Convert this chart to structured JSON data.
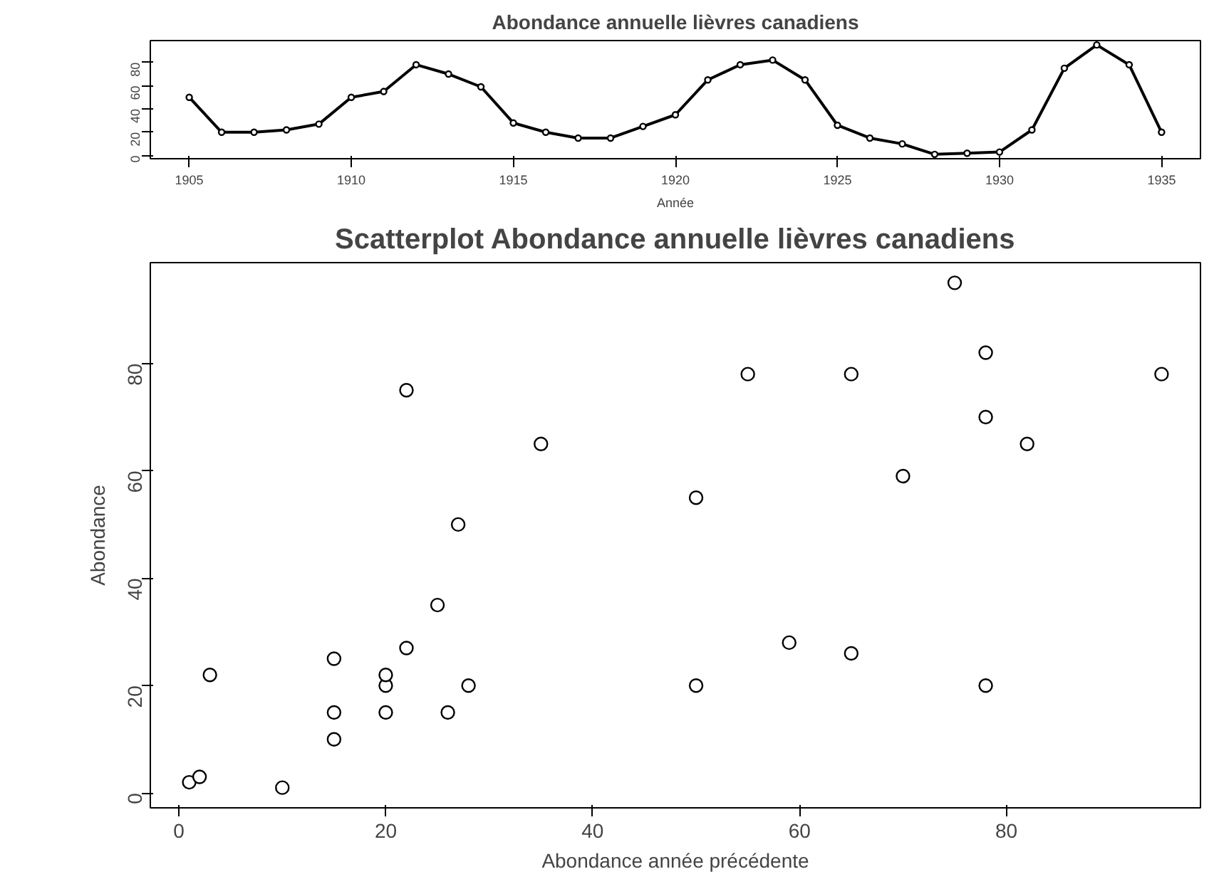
{
  "chart_data": [
    {
      "type": "line",
      "title": "Abondance annuelle lièvres canadiens",
      "xlabel": "Année",
      "x": [
        1905,
        1906,
        1907,
        1908,
        1909,
        1910,
        1911,
        1912,
        1913,
        1914,
        1915,
        1916,
        1917,
        1918,
        1919,
        1920,
        1921,
        1922,
        1923,
        1924,
        1925,
        1926,
        1927,
        1928,
        1929,
        1930,
        1931,
        1932,
        1933,
        1934,
        1935
      ],
      "values": [
        50,
        20,
        20,
        22,
        27,
        50,
        55,
        78,
        70,
        59,
        28,
        20,
        15,
        15,
        25,
        35,
        65,
        78,
        82,
        65,
        26,
        15,
        10,
        1,
        2,
        3,
        22,
        75,
        95,
        78,
        20
      ],
      "color": "#000000",
      "marker": "circle",
      "line_style": "solid",
      "xlim": [
        1903.8,
        1936.2
      ],
      "ylim": [
        -2.76,
        98.76
      ],
      "xticks": [
        1905,
        1910,
        1915,
        1920,
        1925,
        1930,
        1935
      ],
      "yticks": [
        0,
        20,
        40,
        60,
        80
      ],
      "grid": false
    },
    {
      "type": "scatter",
      "title": "Scatterplot Abondance annuelle lièvres canadiens",
      "xlabel": "Abondance année précédente",
      "ylabel": "Abondance",
      "x": [
        50,
        20,
        20,
        22,
        27,
        50,
        55,
        78,
        70,
        59,
        28,
        20,
        15,
        15,
        25,
        35,
        65,
        78,
        82,
        65,
        26,
        15,
        10,
        1,
        2,
        3,
        22,
        75,
        95,
        78
      ],
      "values": [
        20,
        20,
        22,
        27,
        50,
        55,
        78,
        70,
        59,
        28,
        20,
        15,
        15,
        25,
        35,
        65,
        78,
        82,
        65,
        26,
        15,
        10,
        1,
        2,
        3,
        22,
        75,
        95,
        78,
        20
      ],
      "color": "#000000",
      "marker": "circle",
      "xlim": [
        -2.76,
        98.76
      ],
      "ylim": [
        -2.76,
        98.76
      ],
      "xticks": [
        0,
        20,
        40,
        60,
        80
      ],
      "yticks": [
        0,
        20,
        40,
        60,
        80
      ],
      "grid": false
    }
  ]
}
